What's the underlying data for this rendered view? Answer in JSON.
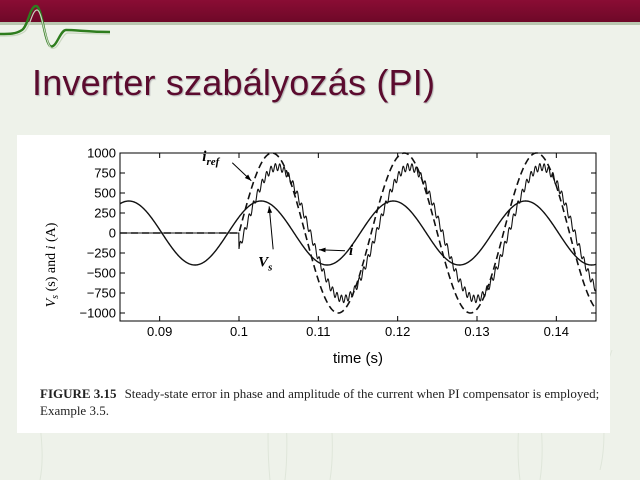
{
  "slide": {
    "title": "Inverter szabályozás (PI)"
  },
  "colors": {
    "top_bar": "#7a0b30",
    "title": "#5b0b2e",
    "background": "#eef2ea"
  },
  "caption": {
    "label": "FIGURE 3.15",
    "text": "Steady-state error in phase and amplitude of the current when PI compensator is employed; Example 3.5."
  },
  "chart_data": {
    "type": "line",
    "xlabel": "time (s)",
    "ylabel": [
      "V",
      "s",
      " (s) and ",
      "i",
      " (A)"
    ],
    "xlim": [
      0.085,
      0.145
    ],
    "ylim": [
      -1100,
      1000
    ],
    "xticks": [
      0.09,
      0.1,
      0.11,
      0.12,
      0.13,
      0.14
    ],
    "xtick_labels": [
      "0.09",
      "0.1",
      "0.11",
      "0.12",
      "0.13",
      "0.14"
    ],
    "yticks": [
      1000,
      750,
      500,
      250,
      0,
      -250,
      -500,
      -750,
      -1000
    ],
    "ytick_labels": [
      "1000",
      "750",
      "500",
      "250",
      "0",
      "−250",
      "−500",
      "−750",
      "−1000"
    ],
    "grid": false,
    "series": [
      {
        "name": "V_s",
        "style": "solid",
        "frequency_hz": 60,
        "amplitude": 400,
        "phase_deg": 30,
        "active_from": 0.085
      },
      {
        "name": "i_ref",
        "style": "dashed",
        "frequency_hz": 60,
        "amplitude": 1000,
        "phase_deg": 0,
        "active_from": 0.1
      },
      {
        "name": "i",
        "style": "solid-ripple",
        "frequency_hz": 60,
        "amplitude": 825,
        "phase_deg": -14,
        "ripple_amplitude": 45,
        "active_from": 0.1
      }
    ],
    "annotations": [
      {
        "base": "i",
        "sub": "ref",
        "target_series": "i_ref"
      },
      {
        "base": "i",
        "sub": "",
        "target_series": "i"
      },
      {
        "base": "V",
        "sub": "s",
        "target_series": "V_s"
      }
    ]
  }
}
